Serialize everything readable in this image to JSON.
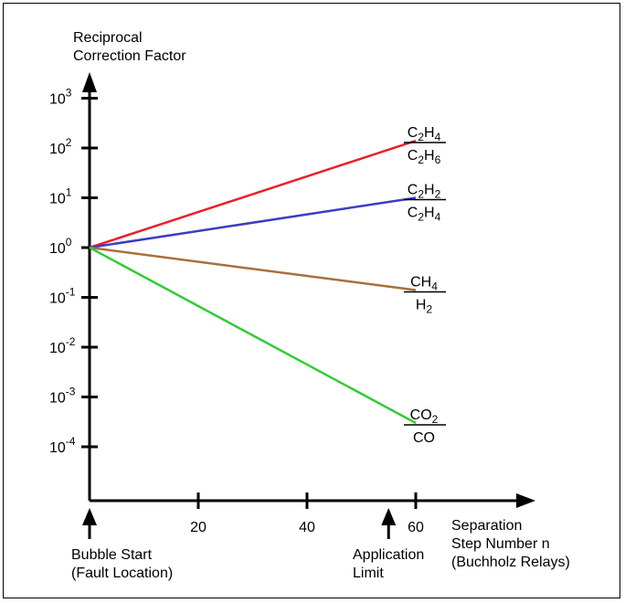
{
  "chart_data": {
    "type": "line",
    "ylabel": [
      "Reciprocal",
      "Correction Factor"
    ],
    "xlabel": [
      "Separation",
      "Step Number n",
      "(Buchholz Relays)"
    ],
    "y_scale": "log",
    "y_ticks": [
      {
        "base": "10",
        "exp": "3",
        "value": 1000
      },
      {
        "base": "10",
        "exp": "2",
        "value": 100
      },
      {
        "base": "10",
        "exp": "1",
        "value": 10
      },
      {
        "base": "10",
        "exp": "0",
        "value": 1
      },
      {
        "base": "10",
        "exp": "-1",
        "value": 0.1
      },
      {
        "base": "10",
        "exp": "-2",
        "value": 0.01
      },
      {
        "base": "10",
        "exp": "-3",
        "value": 0.001
      },
      {
        "base": "10",
        "exp": "-4",
        "value": 0.0001
      }
    ],
    "x_ticks": [
      {
        "label": "20",
        "value": 20
      },
      {
        "label": "40",
        "value": 40
      },
      {
        "label": "60",
        "value": 60
      }
    ],
    "grid": false,
    "series": [
      {
        "color": "#e8202a",
        "x": [
          0,
          60
        ],
        "y": [
          1,
          140
        ],
        "label": {
          "num": [
            [
              "C",
              ""
            ],
            [
              "2",
              "sub"
            ],
            [
              "H",
              ""
            ],
            [
              "4",
              "sub"
            ]
          ],
          "den": [
            [
              "C",
              ""
            ],
            [
              "2",
              "sub"
            ],
            [
              "H",
              ""
            ],
            [
              "6",
              "sub"
            ]
          ]
        }
      },
      {
        "color": "#3c3cc4",
        "x": [
          0,
          60
        ],
        "y": [
          1,
          10
        ],
        "label": {
          "num": [
            [
              "C",
              ""
            ],
            [
              "2",
              "sub"
            ],
            [
              "H",
              ""
            ],
            [
              "2",
              "sub"
            ]
          ],
          "den": [
            [
              "C",
              ""
            ],
            [
              "2",
              "sub"
            ],
            [
              "H",
              ""
            ],
            [
              "4",
              "sub"
            ]
          ]
        }
      },
      {
        "color": "#a8703a",
        "x": [
          0,
          60
        ],
        "y": [
          1,
          0.14
        ],
        "label": {
          "num": [
            [
              "CH",
              ""
            ],
            [
              "4",
              "sub"
            ]
          ],
          "den": [
            [
              "H",
              ""
            ],
            [
              "2",
              "sub"
            ]
          ]
        }
      },
      {
        "color": "#33cc33",
        "x": [
          0,
          60
        ],
        "y": [
          1,
          0.0003
        ],
        "label": {
          "num": [
            [
              "CO",
              ""
            ],
            [
              "2",
              "sub"
            ]
          ],
          "den": [
            [
              "CO",
              ""
            ]
          ]
        }
      }
    ],
    "annotations": [
      {
        "x": 0,
        "lines": [
          "Bubble Start",
          "(Fault Location)"
        ]
      },
      {
        "x": 55,
        "lines": [
          "Application",
          "Limit"
        ]
      }
    ]
  }
}
